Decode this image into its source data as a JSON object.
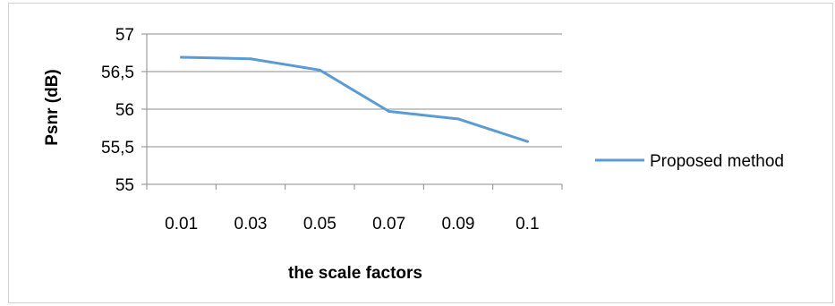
{
  "chart_data": {
    "type": "line",
    "categories": [
      "0.01",
      "0.03",
      "0.05",
      "0.07",
      "0.09",
      "0.1"
    ],
    "series": [
      {
        "name": "Proposed method",
        "values": [
          56.69,
          56.67,
          56.52,
          55.97,
          55.87,
          55.57
        ],
        "color": "#5b9bd5"
      }
    ],
    "xlabel": "the scale factors",
    "ylabel": "Psnr (dB)",
    "ylim": [
      55,
      57
    ],
    "yticks": [
      55,
      55.5,
      56,
      56.5,
      57
    ],
    "ytick_labels": [
      "55",
      "55,5",
      "56",
      "56,5",
      "57"
    ],
    "grid": true,
    "legend": "right"
  }
}
